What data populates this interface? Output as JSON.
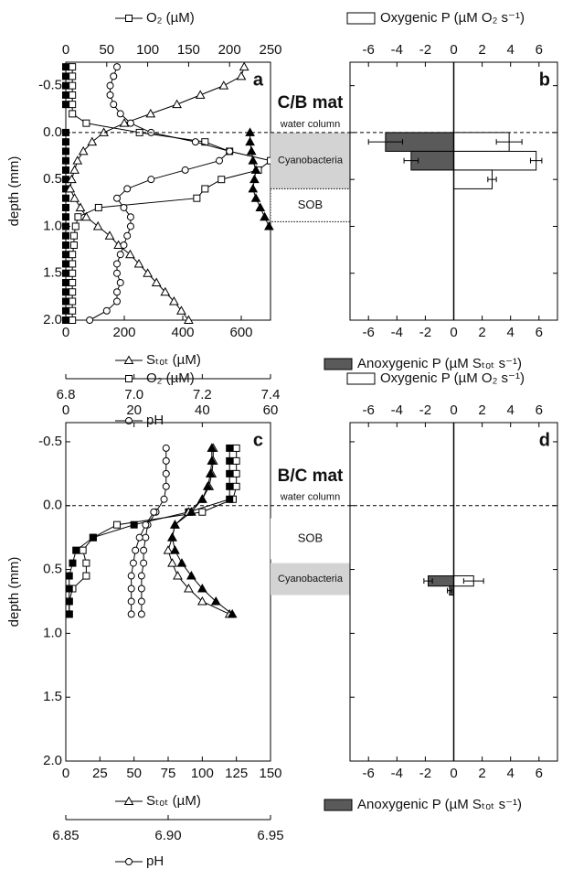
{
  "chart_data": [
    {
      "type": "profile",
      "panel_label": "a",
      "ylabel": "depth (mm)",
      "ylim": [
        -0.75,
        2.0
      ],
      "y_inverted": true,
      "yticks": [
        -0.5,
        {
          "value": 0,
          "label": "0.0"
        },
        0.5,
        {
          "value": 1,
          "label": "1.0"
        },
        1.5,
        {
          "value": 2,
          "label": "2.0"
        }
      ],
      "xlabel": "O₂ (µM)",
      "xlim": [
        0,
        250
      ],
      "xticks": [
        0,
        50,
        100,
        150,
        200,
        250
      ],
      "x2label": "Sₜₒₜ (µM)",
      "x2lim": [
        0,
        700
      ],
      "x2ticks": [
        0,
        200,
        400,
        600
      ],
      "x3label": "pH",
      "x3lim": [
        6.8,
        7.4
      ],
      "x3ticks": [
        6.8,
        {
          "value": 7,
          "label": "7.0"
        },
        7.2,
        7.4
      ],
      "series": [
        {
          "axis": "x",
          "marker": "square",
          "filled": false,
          "depths": [
            -0.7,
            -0.6,
            -0.5,
            -0.4,
            -0.3,
            -0.2,
            -0.1,
            0,
            0.1,
            0.2,
            0.3,
            0.4,
            0.5,
            0.6,
            0.7,
            0.8,
            0.9,
            1,
            1.1,
            1.2,
            1.3,
            1.4,
            1.5,
            1.6,
            1.7,
            1.8,
            1.9,
            2
          ],
          "values": [
            8,
            8,
            8,
            8,
            8,
            8,
            25,
            90,
            170,
            200,
            250,
            235,
            190,
            170,
            160,
            40,
            15,
            12,
            10,
            10,
            8,
            8,
            8,
            8,
            8,
            8,
            8,
            8
          ]
        },
        {
          "axis": "x",
          "marker": "square",
          "filled": true,
          "depths": [
            -0.7,
            -0.6,
            -0.5,
            -0.4,
            -0.3,
            0,
            0.1,
            0.2,
            0.3,
            0.4,
            0.5,
            0.6,
            0.7,
            0.8,
            0.9,
            1,
            1.1,
            1.2,
            1.3,
            1.4,
            1.5,
            1.6,
            1.7,
            1.8,
            1.9,
            2
          ],
          "values": [
            0,
            0,
            0,
            0,
            0,
            0,
            0,
            0,
            0,
            0,
            0,
            0,
            0,
            0,
            0,
            0,
            0,
            0,
            0,
            0,
            0,
            0,
            0,
            0,
            0,
            0
          ]
        },
        {
          "axis": "x2",
          "marker": "triangle",
          "filled": false,
          "depths": [
            -0.7,
            -0.6,
            -0.5,
            -0.4,
            -0.3,
            -0.2,
            -0.1,
            0,
            0.1,
            0.2,
            0.3,
            0.4,
            0.5,
            0.6,
            0.7,
            0.8,
            0.9,
            1,
            1.1,
            1.2,
            1.3,
            1.4,
            1.5,
            1.6,
            1.7,
            1.8,
            1.9,
            2
          ],
          "values": [
            610,
            600,
            540,
            460,
            380,
            290,
            200,
            130,
            90,
            60,
            40,
            30,
            20,
            15,
            30,
            50,
            70,
            110,
            150,
            180,
            220,
            250,
            280,
            310,
            340,
            370,
            395,
            420
          ]
        },
        {
          "axis": "x2",
          "marker": "triangle",
          "filled": true,
          "depths": [
            0,
            0.1,
            0.2,
            0.3,
            0.4,
            0.5,
            0.6,
            0.7,
            0.8,
            0.9,
            1
          ],
          "values": [
            630,
            630,
            635,
            640,
            650,
            645,
            640,
            650,
            665,
            680,
            695
          ]
        },
        {
          "axis": "x3",
          "marker": "circle",
          "filled": false,
          "depths": [
            -0.7,
            -0.6,
            -0.5,
            -0.4,
            -0.3,
            -0.2,
            -0.1,
            0,
            0.1,
            0.2,
            0.3,
            0.4,
            0.5,
            0.6,
            0.7,
            0.8,
            0.9,
            1,
            1.1,
            1.2,
            1.3,
            1.4,
            1.5,
            1.6,
            1.7,
            1.8,
            1.9,
            2
          ],
          "values": [
            6.95,
            6.94,
            6.93,
            6.93,
            6.94,
            6.96,
            6.99,
            7.05,
            7.18,
            7.28,
            7.25,
            7.15,
            7.05,
            6.98,
            6.95,
            6.97,
            6.99,
            6.99,
            6.98,
            6.97,
            6.96,
            6.95,
            6.95,
            6.96,
            6.95,
            6.95,
            6.92,
            6.87
          ]
        }
      ]
    },
    {
      "type": "bar",
      "panel_label": "b",
      "mat_label": "C/B mat",
      "water_label": "water column",
      "hline": 0,
      "ylim": [
        -0.75,
        2.0
      ],
      "y_inverted": true,
      "yticks": [
        -0.5,
        0,
        0.5,
        1,
        1.5,
        2
      ],
      "xlim": [
        -7.3,
        7.3
      ],
      "xticks": [
        -6,
        -4,
        -2,
        0,
        2,
        4,
        6
      ],
      "zero_line": true,
      "zones": [
        {
          "label": "Cyanobacteria",
          "from": 0,
          "to": 0.6,
          "color": "#d3d3d3",
          "border": "none"
        },
        {
          "label": "SOB",
          "from": 0.6,
          "to": 0.95,
          "color": "#ffffff",
          "border": "dotted"
        }
      ],
      "series": [
        {
          "name": "Oxygenic P (µM O₂ s⁻¹)",
          "color": "#ffffff",
          "bins": [
            0,
            0.2,
            0.4,
            0.6
          ],
          "values": [
            3.9,
            5.8,
            2.7
          ],
          "errors": [
            0.9,
            0.4,
            0.3
          ]
        },
        {
          "name": "Anoxygenic P (µM Sₜₒₜ s⁻¹)",
          "color": "#5a5a5a",
          "bins": [
            0,
            0.2,
            0.4
          ],
          "values": [
            -4.8,
            -3.0
          ],
          "errors": [
            1.2,
            0.5
          ]
        }
      ]
    },
    {
      "type": "profile",
      "panel_label": "c",
      "ylabel": "depth (mm)",
      "ylim": [
        -0.65,
        2.0
      ],
      "y_inverted": true,
      "yticks": [
        -0.5,
        {
          "value": 0,
          "label": "0.0"
        },
        0.5,
        {
          "value": 1,
          "label": "1.0"
        },
        1.5,
        {
          "value": 2,
          "label": "2.0"
        }
      ],
      "xlabel": "O₂ (µM)",
      "xlim": [
        0,
        60
      ],
      "xticks": [
        0,
        20,
        40,
        60
      ],
      "x2label": "Sₜₒₜ (µM)",
      "x2lim": [
        0,
        150
      ],
      "x2ticks": [
        0,
        25,
        50,
        75,
        100,
        125,
        150
      ],
      "x3label": "pH",
      "x3lim": [
        6.85,
        6.95
      ],
      "x3ticks": [
        6.85,
        {
          "value": 6.9,
          "label": "6.90"
        },
        6.95
      ],
      "series": [
        {
          "axis": "x",
          "marker": "square",
          "filled": false,
          "depths": [
            -0.45,
            -0.35,
            -0.25,
            -0.15,
            -0.05,
            0.05,
            0.15,
            0.25,
            0.35,
            0.45,
            0.55,
            0.65,
            0.75,
            0.85
          ],
          "values": [
            50,
            50,
            50,
            50,
            49,
            40,
            15,
            8,
            5,
            6,
            6,
            2,
            1,
            1
          ]
        },
        {
          "axis": "x",
          "marker": "square",
          "filled": true,
          "depths": [
            -0.45,
            -0.35,
            -0.25,
            -0.15,
            -0.05,
            0.05,
            0.15,
            0.25,
            0.35,
            0.45,
            0.55,
            0.65,
            0.75,
            0.85
          ],
          "values": [
            48,
            48,
            48,
            48,
            48,
            36,
            20,
            8,
            3,
            2,
            1,
            1,
            1,
            1
          ]
        },
        {
          "axis": "x2",
          "marker": "triangle",
          "filled": false,
          "depths": [
            -0.45,
            -0.35,
            -0.25,
            -0.15,
            -0.05,
            0.05,
            0.15,
            0.25,
            0.35,
            0.45,
            0.55,
            0.65,
            0.75,
            0.85
          ],
          "values": [
            108,
            108,
            107,
            105,
            100,
            90,
            80,
            78,
            75,
            78,
            82,
            90,
            100,
            120
          ]
        },
        {
          "axis": "x2",
          "marker": "triangle",
          "filled": true,
          "depths": [
            -0.45,
            -0.35,
            -0.25,
            -0.15,
            -0.05,
            0.05,
            0.15,
            0.25,
            0.35,
            0.45,
            0.55,
            0.65,
            0.75,
            0.85
          ],
          "values": [
            107,
            107,
            106,
            104,
            100,
            92,
            80,
            78,
            80,
            85,
            92,
            100,
            110,
            122
          ]
        },
        {
          "axis": "x3",
          "marker": "circle",
          "filled": false,
          "depths": [
            -0.45,
            -0.35,
            -0.25,
            -0.15,
            -0.05,
            0.05,
            0.15,
            0.25,
            0.35,
            0.45,
            0.55,
            0.65,
            0.75,
            0.85
          ],
          "values": [
            6.899,
            6.899,
            6.899,
            6.899,
            6.898,
            6.894,
            6.89,
            6.889,
            6.888,
            6.888,
            6.887,
            6.887,
            6.887,
            6.887
          ]
        },
        {
          "axis": "x3",
          "marker": "circle",
          "filled": false,
          "depths": [
            0.05,
            0.15,
            0.25,
            0.35,
            0.45,
            0.55,
            0.65,
            0.75,
            0.85
          ],
          "values": [
            6.893,
            6.889,
            6.886,
            6.884,
            6.883,
            6.882,
            6.882,
            6.882,
            6.882
          ]
        }
      ]
    },
    {
      "type": "bar",
      "panel_label": "d",
      "mat_label": "B/C mat",
      "water_label": "water column",
      "hline": 0,
      "ylim": [
        -0.65,
        2.0
      ],
      "y_inverted": true,
      "yticks": [
        -0.5,
        0,
        0.5,
        1,
        1.5,
        2
      ],
      "xlim": [
        -7.3,
        7.3
      ],
      "xticks": [
        -6,
        -4,
        -2,
        0,
        2,
        4,
        6
      ],
      "zero_line": true,
      "zones": [
        {
          "label": "SOB",
          "from": 0.1,
          "to": 0.42,
          "color": "#ffffff",
          "border": "none"
        },
        {
          "label": "Cyanobacteria",
          "from": 0.45,
          "to": 0.7,
          "color": "#d3d3d3",
          "border": "none"
        }
      ],
      "series": [
        {
          "name": "Oxygenic P (µM O₂ s⁻¹)",
          "color": "#ffffff",
          "bins": [
            0.55,
            0.63
          ],
          "values": [
            1.4
          ],
          "errors": [
            0.7
          ]
        },
        {
          "name": "Anoxygenic P (µM Sₜₒₜ s⁻¹)",
          "color": "#5a5a5a",
          "bins": [
            0.55,
            0.63,
            0.7
          ],
          "values": [
            -1.8,
            -0.3
          ],
          "errors": [
            0.3,
            0.15
          ]
        }
      ]
    }
  ]
}
